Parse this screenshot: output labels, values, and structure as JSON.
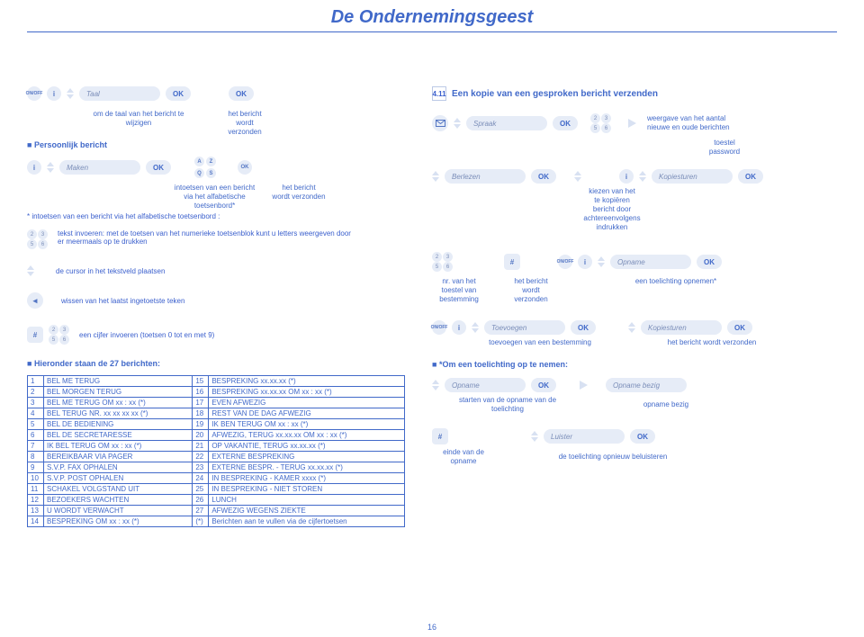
{
  "title": "De Ondernemingsgeest",
  "ok": "OK",
  "pageNum": "16",
  "left": {
    "taal": "Taal",
    "sub1a": "om de taal van het bericht te\nwijzigen",
    "sub1b": "het bericht\nwordt\nverzonden",
    "persoonlijk": "Persoonlijk bericht",
    "maken": "Maken",
    "intoetsen1": "intoetsen van een bericht\nvia het alfabetische\ntoetsenbord*",
    "intoetsen2": "het bericht\nwordt verzonden",
    "footnote": "* intoetsen van een bericht via het alfabetische toetsenbord :",
    "tekst": "tekst invoeren: met de toetsen van het numerieke toetsenblok kunt u letters weergeven door er meermaals op te drukken",
    "cursor": "de cursor in het tekstveld plaatsen",
    "wissen": "wissen van het laatst ingetoetste teken",
    "cijfer": "een cijfer invoeren (toetsen 0 tot en met 9)",
    "hieronder": "Hieronder staan de 27 berichten:"
  },
  "right": {
    "sec": "4.11",
    "secTitle": "Een kopie van een gesproken bericht verzenden",
    "spraak": "Spraak",
    "weergave": "weergave van het aantal\nnieuwe en oude berichten",
    "toestelPw": "toestel\npassword",
    "berlezen": "Berlezen",
    "kopiesturen": "Kopiesturen",
    "kiezen": "kiezen van het\nte kopiëren\nbericht door\nachtereenvolgens\nindrukken",
    "opname": "Opname",
    "nrvan": "nr. van het\ntoestel van\nbestemming",
    "wordtverz": "het bericht\nwordt\nverzonden",
    "toelichting": "een toelichting opnemen*",
    "toevoegen": "Toevoegen",
    "kopie2": "Kopiesturen",
    "toevCap": "toevoegen van een bestemming",
    "verzCap": "het bericht wordt verzonden",
    "omEen": "*Om een toelichting op te nemen:",
    "opnameBezig": "Opname bezig",
    "starten": "starten van de opname van de\ntoelichting",
    "opbezig": "opname bezig",
    "luister": "Luister",
    "einde": "einde van de\nopname",
    "opnieuw": "de toelichting opnieuw beluisteren"
  },
  "table": {
    "rows": [
      [
        "1",
        "BEL ME TERUG",
        "15",
        "BESPREKING xx.xx.xx (*)"
      ],
      [
        "2",
        "BEL MORGEN TERUG",
        "16",
        "BESPREKING xx.xx.xx OM xx : xx (*)"
      ],
      [
        "3",
        "BEL ME TERUG OM xx : xx (*)",
        "17",
        "EVEN AFWEZIG"
      ],
      [
        "4",
        "BEL TERUG NR. xx xx xx xx (*)",
        "18",
        "REST VAN DE DAG AFWEZIG"
      ],
      [
        "5",
        "BEL DE BEDIENING",
        "19",
        "IK BEN TERUG OM xx : xx (*)"
      ],
      [
        "6",
        "BEL DE SECRETARESSE",
        "20",
        "AFWEZIG, TERUG xx.xx.xx OM xx : xx (*)"
      ],
      [
        "7",
        "IK BEL TERUG OM xx : xx (*)",
        "21",
        "OP VAKANTIE, TERUG xx.xx.xx (*)"
      ],
      [
        "8",
        "BEREIKBAAR VIA PAGER",
        "22",
        "EXTERNE BESPREKING"
      ],
      [
        "9",
        "S.V.P. FAX OPHALEN",
        "23",
        "EXTERNE BESPR. - TERUG xx.xx.xx (*)"
      ],
      [
        "10",
        "S.V.P. POST OPHALEN",
        "24",
        "IN BESPREKING - KAMER xxxx (*)"
      ],
      [
        "11",
        "SCHAKEL VOLGSTAND UIT",
        "25",
        "IN BESPREKING - NIET STOREN"
      ],
      [
        "12",
        "BEZOEKERS WACHTEN",
        "26",
        "LUNCH"
      ],
      [
        "13",
        "U WORDT VERWACHT",
        "27",
        "AFWEZIG WEGENS ZIEKTE"
      ],
      [
        "14",
        "BESPREKING OM xx : xx (*)",
        "(*)",
        "Berichten aan te vullen via de cijfertoetsen"
      ]
    ]
  },
  "colors": {
    "primary": "#4169c9",
    "soft": "#e6ecf7"
  }
}
